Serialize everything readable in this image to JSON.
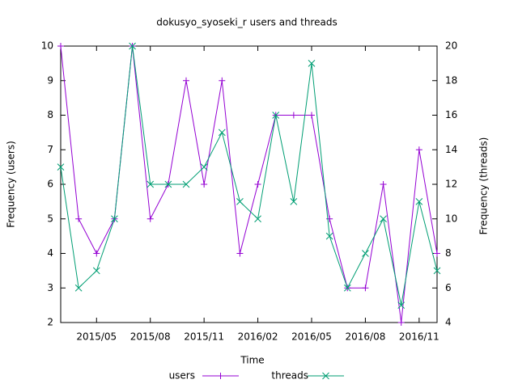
{
  "chart_data": {
    "type": "line",
    "title": "dokusyo_syoseki_r users and threads",
    "xlabel": "Time",
    "ylabel": "Frequency (users)",
    "y2label": "Frequency (threads)",
    "x": [
      "2015-03",
      "2015-04",
      "2015-05",
      "2015-06",
      "2015-07",
      "2015-08",
      "2015-09",
      "2015-10",
      "2015-11",
      "2015-12",
      "2016-01",
      "2016-02",
      "2016-03",
      "2016-04",
      "2016-05",
      "2016-06",
      "2016-07",
      "2016-08",
      "2016-09",
      "2016-10",
      "2016-11",
      "2016-12"
    ],
    "series": [
      {
        "name": "users",
        "color": "#9400d3",
        "marker": "plus",
        "values": [
          10,
          5,
          4,
          5,
          10,
          5,
          6,
          9,
          6,
          9,
          4,
          6,
          8,
          8,
          8,
          5,
          3,
          3,
          6,
          2,
          7,
          4
        ]
      },
      {
        "name": "threads",
        "color": "#009e73",
        "marker": "cross",
        "axis": "y2",
        "values": [
          13,
          6,
          7,
          10,
          20,
          12,
          12,
          12,
          13,
          15,
          11,
          10,
          16,
          11,
          19,
          9,
          6,
          8,
          10,
          5,
          11,
          7
        ]
      }
    ],
    "xlim": [
      "2015-03",
      "2016-12"
    ],
    "xticks": [
      {
        "value": "2015-05",
        "label": "2015/05"
      },
      {
        "value": "2015-08",
        "label": "2015/08"
      },
      {
        "value": "2015-11",
        "label": "2015/11"
      },
      {
        "value": "2016-02",
        "label": "2016/02"
      },
      {
        "value": "2016-05",
        "label": "2016/05"
      },
      {
        "value": "2016-08",
        "label": "2016/08"
      },
      {
        "value": "2016-11",
        "label": "2016/11"
      }
    ],
    "ylim": [
      2,
      10
    ],
    "yticks": [
      2,
      3,
      4,
      5,
      6,
      7,
      8,
      9,
      10
    ],
    "y2lim": [
      4,
      20
    ],
    "y2ticks": [
      4,
      6,
      8,
      10,
      12,
      14,
      16,
      18,
      20
    ],
    "legend": "bottom"
  }
}
